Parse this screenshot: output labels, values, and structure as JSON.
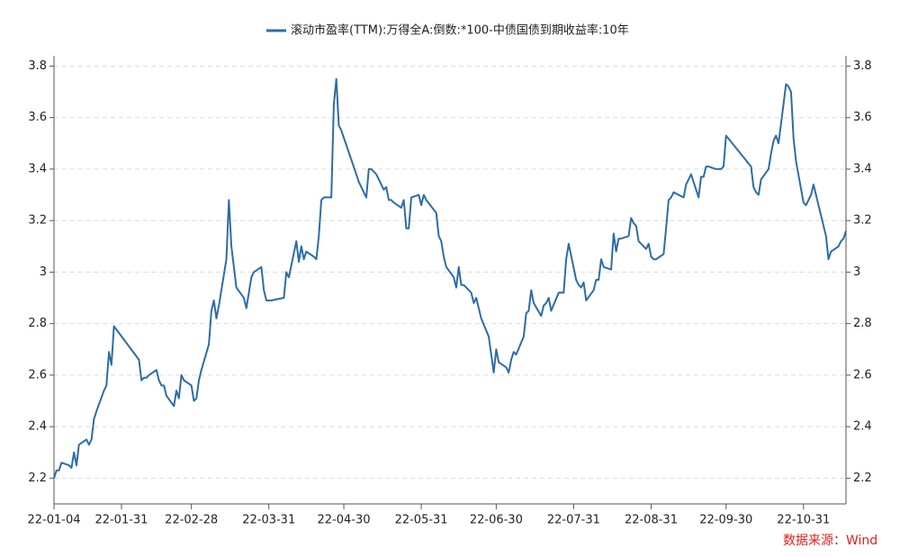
{
  "chart_data": {
    "type": "line",
    "series": [
      {
        "name": "滚动市盈率(TTM):万得全A:倒数:*100-中债国债到期收益率:10年",
        "color": "#2e6da4",
        "x": [
          "22-01-04",
          "22-01-05",
          "22-01-06",
          "22-01-07",
          "22-01-10",
          "22-01-11",
          "22-01-12",
          "22-01-13",
          "22-01-14",
          "22-01-17",
          "22-01-18",
          "22-01-19",
          "22-01-20",
          "22-01-21",
          "22-01-24",
          "22-01-25",
          "22-01-26",
          "22-01-27",
          "22-01-28",
          "22-02-07",
          "22-02-08",
          "22-02-09",
          "22-02-10",
          "22-02-11",
          "22-02-14",
          "22-02-15",
          "22-02-16",
          "22-02-17",
          "22-02-18",
          "22-02-21",
          "22-02-22",
          "22-02-23",
          "22-02-24",
          "22-02-25",
          "22-02-28",
          "22-03-01",
          "22-03-02",
          "22-03-03",
          "22-03-04",
          "22-03-07",
          "22-03-08",
          "22-03-09",
          "22-03-10",
          "22-03-11",
          "22-03-14",
          "22-03-15",
          "22-03-16",
          "22-03-17",
          "22-03-18",
          "22-03-21",
          "22-03-22",
          "22-03-23",
          "22-03-24",
          "22-03-25",
          "22-03-28",
          "22-03-29",
          "22-03-30",
          "22-03-31",
          "22-04-01",
          "22-04-06",
          "22-04-07",
          "22-04-08",
          "22-04-11",
          "22-04-12",
          "22-04-13",
          "22-04-14",
          "22-04-15",
          "22-04-18",
          "22-04-19",
          "22-04-20",
          "22-04-21",
          "22-04-22",
          "22-04-25",
          "22-04-26",
          "22-04-27",
          "22-04-28",
          "22-04-29",
          "22-05-05",
          "22-05-06",
          "22-05-09",
          "22-05-10",
          "22-05-11",
          "22-05-12",
          "22-05-13",
          "22-05-16",
          "22-05-17",
          "22-05-18",
          "22-05-19",
          "22-05-20",
          "22-05-23",
          "22-05-24",
          "22-05-25",
          "22-05-26",
          "22-05-27",
          "22-05-30",
          "22-05-31",
          "22-06-01",
          "22-06-02",
          "22-06-06",
          "22-06-07",
          "22-06-08",
          "22-06-09",
          "22-06-10",
          "22-06-13",
          "22-06-14",
          "22-06-15",
          "22-06-16",
          "22-06-17",
          "22-06-20",
          "22-06-21",
          "22-06-22",
          "22-06-23",
          "22-06-24",
          "22-06-27",
          "22-06-28",
          "22-06-29",
          "22-06-30",
          "22-07-01",
          "22-07-04",
          "22-07-05",
          "22-07-06",
          "22-07-07",
          "22-07-08",
          "22-07-11",
          "22-07-12",
          "22-07-13",
          "22-07-14",
          "22-07-15",
          "22-07-18",
          "22-07-19",
          "22-07-20",
          "22-07-21",
          "22-07-22",
          "22-07-25",
          "22-07-26",
          "22-07-27",
          "22-07-28",
          "22-07-29",
          "22-08-01",
          "22-08-02",
          "22-08-03",
          "22-08-04",
          "22-08-05",
          "22-08-08",
          "22-08-09",
          "22-08-10",
          "22-08-11",
          "22-08-12",
          "22-08-15",
          "22-08-16",
          "22-08-17",
          "22-08-18",
          "22-08-19",
          "22-08-22",
          "22-08-23",
          "22-08-24",
          "22-08-25",
          "22-08-26",
          "22-08-29",
          "22-08-30",
          "22-08-31",
          "22-09-01",
          "22-09-02",
          "22-09-05",
          "22-09-06",
          "22-09-07",
          "22-09-08",
          "22-09-09",
          "22-09-13",
          "22-09-14",
          "22-09-15",
          "22-09-16",
          "22-09-19",
          "22-09-20",
          "22-09-21",
          "22-09-22",
          "22-09-23",
          "22-09-26",
          "22-09-27",
          "22-09-28",
          "22-09-29",
          "22-09-30",
          "22-10-10",
          "22-10-11",
          "22-10-12",
          "22-10-13",
          "22-10-14",
          "22-10-17",
          "22-10-18",
          "22-10-19",
          "22-10-20",
          "22-10-21",
          "22-10-24",
          "22-10-25",
          "22-10-26",
          "22-10-27",
          "22-10-28",
          "22-10-31",
          "22-11-01",
          "22-11-02",
          "22-11-03",
          "22-11-04",
          "22-11-07",
          "22-11-08",
          "22-11-09",
          "22-11-10",
          "22-11-11",
          "22-11-14",
          "22-11-15",
          "22-11-16",
          "22-11-17"
        ],
        "values": [
          2.2,
          2.23,
          2.23,
          2.26,
          2.25,
          2.24,
          2.3,
          2.25,
          2.33,
          2.35,
          2.33,
          2.35,
          2.43,
          2.46,
          2.54,
          2.56,
          2.69,
          2.64,
          2.79,
          2.66,
          2.58,
          2.59,
          2.59,
          2.6,
          2.62,
          2.58,
          2.56,
          2.56,
          2.52,
          2.48,
          2.54,
          2.51,
          2.6,
          2.58,
          2.56,
          2.5,
          2.51,
          2.58,
          2.62,
          2.72,
          2.85,
          2.89,
          2.82,
          2.87,
          3.05,
          3.28,
          3.1,
          3.02,
          2.94,
          2.9,
          2.86,
          2.92,
          2.98,
          3.0,
          3.02,
          2.93,
          2.89,
          2.89,
          2.89,
          2.9,
          3.0,
          2.98,
          3.12,
          3.04,
          3.1,
          3.05,
          3.08,
          3.06,
          3.05,
          3.14,
          3.28,
          3.29,
          3.29,
          3.65,
          3.75,
          3.57,
          3.55,
          3.38,
          3.35,
          3.29,
          3.4,
          3.4,
          3.39,
          3.38,
          3.32,
          3.33,
          3.28,
          3.28,
          3.27,
          3.25,
          3.28,
          3.17,
          3.17,
          3.29,
          3.3,
          3.26,
          3.3,
          3.28,
          3.23,
          3.14,
          3.12,
          3.06,
          3.02,
          2.98,
          2.94,
          3.02,
          2.95,
          2.95,
          2.92,
          2.88,
          2.9,
          2.86,
          2.82,
          2.75,
          2.68,
          2.61,
          2.7,
          2.65,
          2.63,
          2.61,
          2.66,
          2.69,
          2.68,
          2.75,
          2.84,
          2.85,
          2.93,
          2.88,
          2.83,
          2.87,
          2.88,
          2.9,
          2.85,
          2.92,
          2.92,
          2.92,
          3.05,
          3.11,
          2.97,
          2.95,
          2.94,
          2.96,
          2.89,
          2.93,
          2.97,
          2.97,
          3.05,
          3.02,
          3.01,
          3.15,
          3.08,
          3.13,
          3.13,
          3.14,
          3.21,
          3.19,
          3.18,
          3.12,
          3.09,
          3.11,
          3.06,
          3.05,
          3.05,
          3.07,
          3.17,
          3.28,
          3.29,
          3.31,
          3.29,
          3.34,
          3.36,
          3.38,
          3.29,
          3.37,
          3.37,
          3.41,
          3.41,
          3.4,
          3.4,
          3.4,
          3.41,
          3.53,
          3.41,
          3.33,
          3.31,
          3.3,
          3.36,
          3.4,
          3.46,
          3.51,
          3.53,
          3.5,
          3.73,
          3.72,
          3.7,
          3.52,
          3.43,
          3.27,
          3.26,
          3.28,
          3.3,
          3.34,
          3.22,
          3.18,
          3.14,
          3.05,
          3.08,
          3.1,
          3.12,
          3.13,
          3.16
        ]
      }
    ],
    "xlim": [
      "22-01-04",
      "22-11-17"
    ],
    "xticks": [
      "22-01-04",
      "22-01-31",
      "22-02-28",
      "22-03-31",
      "22-04-30",
      "22-05-31",
      "22-06-30",
      "22-07-31",
      "22-08-31",
      "22-09-30",
      "22-10-31"
    ],
    "ylim": [
      2.1,
      3.84
    ],
    "yticks": [
      2.2,
      2.4,
      2.6,
      2.8,
      3,
      3.2,
      3.4,
      3.6,
      3.8
    ],
    "y2lim": [
      2.1,
      3.84
    ],
    "y2ticks": [
      2.2,
      2.4,
      2.6,
      2.8,
      3,
      3.2,
      3.4,
      3.6,
      3.8
    ],
    "grid": true,
    "legend": "top",
    "source": "数据来源：Wind"
  }
}
